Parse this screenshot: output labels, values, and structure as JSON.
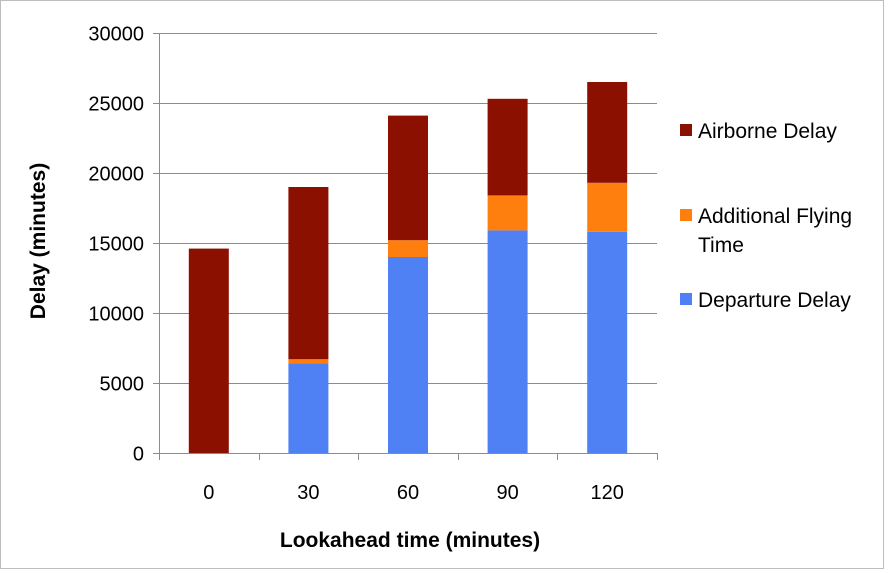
{
  "chart_data": {
    "type": "bar",
    "stacked": true,
    "title": "",
    "xlabel": "Lookahead time (minutes)",
    "ylabel": "Delay (minutes)",
    "categories": [
      "0",
      "30",
      "60",
      "90",
      "120"
    ],
    "ylim": [
      0,
      30000
    ],
    "yticks": [
      "0",
      "5000",
      "10000",
      "15000",
      "20000",
      "25000",
      "30000"
    ],
    "grid": true,
    "legend_position": "right",
    "series": [
      {
        "name": "Departure Delay",
        "color": "#4f81f5",
        "values": [
          0,
          6400,
          14000,
          15900,
          15800
        ]
      },
      {
        "name": "Additional Flying Time",
        "color": "#ff7f0e",
        "values": [
          0,
          300,
          1200,
          2500,
          3500
        ]
      },
      {
        "name": "Airborne Delay",
        "color": "#8b1000",
        "values": [
          14600,
          12300,
          8900,
          6900,
          7200
        ]
      }
    ],
    "legend": [
      {
        "lines": [
          "Airborne Delay"
        ],
        "color": "#8b1000"
      },
      {
        "lines": [
          "Additional Flying",
          "Time"
        ],
        "color": "#ff7f0e"
      },
      {
        "lines": [
          "Departure Delay"
        ],
        "color": "#4f81f5"
      }
    ]
  }
}
